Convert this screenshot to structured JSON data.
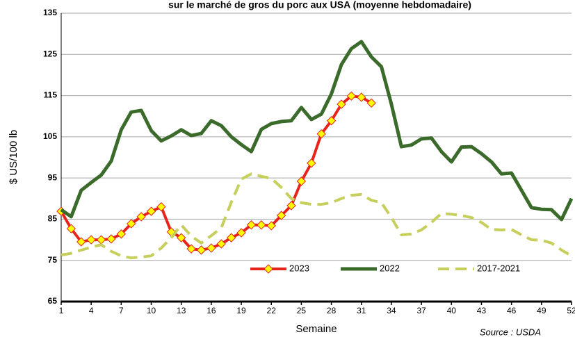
{
  "chart_data": {
    "type": "line",
    "title": "sur le marché de gros du porc aux USA (moyenne hebdomadaire)",
    "x_label": "Semaine",
    "y_label": "$ US/100 lb",
    "source": "Source : USDA",
    "x": [
      1,
      2,
      3,
      4,
      5,
      6,
      7,
      8,
      9,
      10,
      11,
      12,
      13,
      14,
      15,
      16,
      17,
      18,
      19,
      20,
      21,
      22,
      23,
      24,
      25,
      26,
      27,
      28,
      29,
      30,
      31,
      32,
      33,
      34,
      35,
      36,
      37,
      38,
      39,
      40,
      41,
      42,
      43,
      44,
      45,
      46,
      47,
      48,
      49,
      50,
      51,
      52
    ],
    "xlim": [
      1,
      52
    ],
    "xticks": [
      1,
      4,
      7,
      10,
      13,
      16,
      19,
      22,
      25,
      28,
      31,
      34,
      37,
      40,
      43,
      46,
      49,
      52
    ],
    "ylim": [
      65,
      135
    ],
    "yticks": [
      65,
      75,
      85,
      95,
      105,
      115,
      125,
      135
    ],
    "grid": true,
    "legend": "bottom",
    "series": [
      {
        "name": "2023",
        "color": "#e8231b",
        "marker": "diamond",
        "style": "solid",
        "values": [
          86.9,
          82.7,
          79.5,
          80,
          80,
          80.2,
          81.4,
          83.9,
          85.6,
          86.9,
          88,
          81.9,
          80.5,
          77.8,
          77.5,
          78,
          79,
          80.5,
          81.7,
          83.6,
          83.6,
          83.4,
          85.9,
          88.3,
          94.2,
          98.6,
          105.7,
          108.9,
          112.9,
          114.9,
          114.6,
          113.2,
          null,
          null,
          null,
          null,
          null,
          null,
          null,
          null,
          null,
          null,
          null,
          null,
          null,
          null,
          null,
          null,
          null,
          null,
          null,
          null
        ]
      },
      {
        "name": "2022",
        "color": "#3b6b2b",
        "style": "solid",
        "values": [
          87.3,
          85.6,
          92,
          93.9,
          95.7,
          99.1,
          106.7,
          111,
          111.4,
          106.5,
          104,
          105.2,
          106.7,
          105.3,
          105.8,
          108.9,
          107.7,
          105,
          103.1,
          101.4,
          106.8,
          108.2,
          108.7,
          108.9,
          112.1,
          109.2,
          110.5,
          115.4,
          122.5,
          126.4,
          128.1,
          124.4,
          122,
          112.9,
          102.6,
          103,
          104.5,
          104.7,
          101.4,
          98.9,
          102.5,
          102.6,
          100.9,
          98.9,
          96,
          96.2,
          92,
          87.8,
          87.4,
          87.3,
          84.9,
          90
        ]
      },
      {
        "name": "2017-2021",
        "color": "#c6cf5b",
        "style": "dashed",
        "values": [
          76.3,
          76.7,
          77.5,
          78.2,
          78.8,
          77.2,
          76.1,
          75.6,
          75.8,
          76.1,
          78,
          80.5,
          83.6,
          80.9,
          79.2,
          81,
          82.9,
          89.1,
          94.7,
          96,
          95.4,
          94.9,
          92.7,
          90,
          89,
          88.6,
          88.6,
          89,
          90,
          90.8,
          91,
          89.6,
          89,
          85.4,
          81.2,
          81.4,
          82.4,
          84.2,
          86.4,
          86.2,
          85.9,
          85.4,
          84.2,
          82.5,
          82.4,
          82.5,
          81.2,
          80,
          79.9,
          79.2,
          77.5,
          76.1
        ]
      }
    ]
  }
}
